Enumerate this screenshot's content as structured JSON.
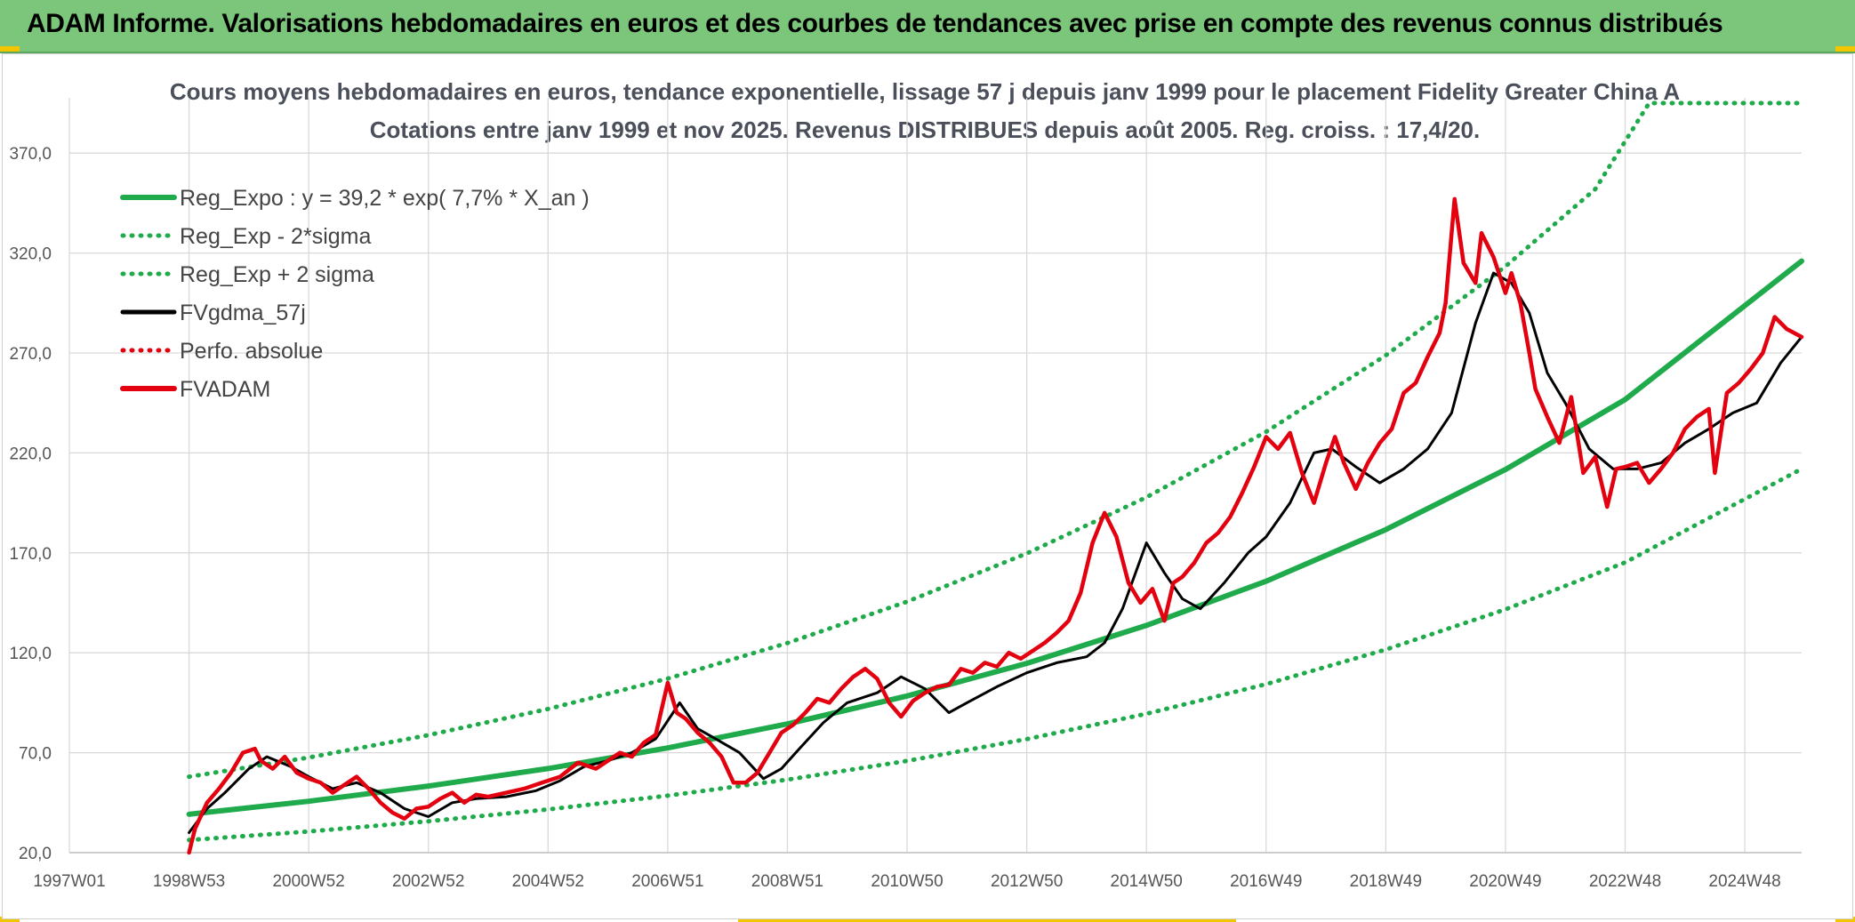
{
  "header": {
    "title": "ADAM Informe. Valorisations hebdomadaires en euros et des courbes de tendances avec prise en compte des revenus connus distribués"
  },
  "chart_data": {
    "type": "line",
    "title": "Cours moyens hebdomadaires en euros, tendance exponentielle, lissage 57 j depuis janv 1999 pour le placement Fidelity Greater China A",
    "subtitle": "Cotations entre janv 1999 et nov 2025. Revenus DISTRIBUES depuis août 2005. Reg. croiss. : 17,4/20.",
    "xlabel": "",
    "ylabel": "",
    "ylim": [
      20,
      395
    ],
    "yticks": [
      "20,0",
      "70,0",
      "120,0",
      "170,0",
      "220,0",
      "270,0",
      "320,0",
      "370,0"
    ],
    "xlim": [
      1997.0,
      2025.95
    ],
    "xticks": [
      "1997W01",
      "1998W53",
      "2000W52",
      "2002W52",
      "2004W52",
      "2006W51",
      "2008W51",
      "2010W50",
      "2012W50",
      "2014W50",
      "2016W49",
      "2018W49",
      "2020W49",
      "2022W48",
      "2024W48"
    ],
    "grid": true,
    "legend_position": "top-left",
    "series": [
      {
        "name": "Reg_Expo : y = 39,2 * exp( 7,7% *  X_an )",
        "color": "#1faa4b",
        "style": "solid",
        "x": [
          1999.0,
          2001.0,
          2003.0,
          2005.0,
          2007.0,
          2009.0,
          2011.0,
          2013.0,
          2015.0,
          2017.0,
          2019.0,
          2021.0,
          2023.0,
          2025.95
        ],
        "values": [
          39.2,
          45.7,
          53.3,
          62.1,
          72.4,
          84.4,
          98.4,
          114.7,
          133.7,
          155.8,
          181.6,
          211.7,
          246.7,
          316.0
        ]
      },
      {
        "name": "Reg_Exp - 2*sigma",
        "color": "#1faa4b",
        "style": "dotted",
        "x": [
          1999.0,
          2001.0,
          2003.0,
          2005.0,
          2007.0,
          2009.0,
          2011.0,
          2013.0,
          2015.0,
          2017.0,
          2019.0,
          2021.0,
          2023.0,
          2025.95
        ],
        "values": [
          26.3,
          30.6,
          35.7,
          41.6,
          48.5,
          56.5,
          65.9,
          76.8,
          89.5,
          104.3,
          121.6,
          141.7,
          165.2,
          212.0
        ]
      },
      {
        "name": "Reg_Exp + 2 sigma",
        "color": "#1faa4b",
        "style": "dotted",
        "x": [
          1999.0,
          2001.0,
          2003.0,
          2005.0,
          2007.0,
          2009.0,
          2011.0,
          2013.0,
          2015.0,
          2017.0,
          2019.0,
          2021.0,
          2022.5,
          2023.4,
          2025.95
        ],
        "values": [
          58.0,
          67.6,
          78.8,
          91.9,
          107.1,
          124.9,
          145.6,
          169.7,
          197.8,
          230.6,
          268.8,
          313.3,
          352.0,
          395.0,
          395.0
        ]
      },
      {
        "name": "FVgdma_57j",
        "color": "#000000",
        "style": "solid",
        "x": [
          1999.0,
          1999.3,
          1999.6,
          2000.0,
          2000.3,
          2000.7,
          2001.0,
          2001.4,
          2001.8,
          2002.2,
          2002.6,
          2003.0,
          2003.4,
          2003.8,
          2004.3,
          2004.8,
          2005.2,
          2005.6,
          2006.0,
          2006.4,
          2006.8,
          2007.2,
          2007.5,
          2007.8,
          2008.2,
          2008.6,
          2008.9,
          2009.2,
          2009.6,
          2010.0,
          2010.5,
          2010.9,
          2011.3,
          2011.7,
          2012.0,
          2012.5,
          2013.0,
          2013.5,
          2014.0,
          2014.3,
          2014.6,
          2015.0,
          2015.3,
          2015.6,
          2015.9,
          2016.3,
          2016.7,
          2017.0,
          2017.4,
          2017.8,
          2018.1,
          2018.5,
          2018.9,
          2019.3,
          2019.7,
          2020.1,
          2020.5,
          2020.8,
          2021.1,
          2021.4,
          2021.7,
          2022.0,
          2022.4,
          2022.8,
          2023.2,
          2023.6,
          2024.0,
          2024.4,
          2024.8,
          2025.2,
          2025.6,
          2025.95
        ],
        "values": [
          30,
          42,
          50,
          62,
          68,
          63,
          58,
          52,
          55,
          50,
          42,
          38,
          45,
          47,
          48,
          51,
          56,
          63,
          66,
          70,
          77,
          95,
          82,
          77,
          70,
          57,
          62,
          72,
          85,
          95,
          100,
          108,
          102,
          90,
          95,
          103,
          110,
          115,
          118,
          125,
          142,
          175,
          160,
          147,
          142,
          155,
          170,
          178,
          195,
          220,
          222,
          213,
          205,
          212,
          222,
          240,
          285,
          310,
          305,
          290,
          260,
          245,
          222,
          212,
          212,
          215,
          225,
          232,
          240,
          245,
          265,
          278
        ]
      },
      {
        "name": "Perfo. absolue",
        "color": "#e3000f",
        "style": "dotted",
        "x": [],
        "values": []
      },
      {
        "name": "FVADAM",
        "color": "#e3000f",
        "style": "solid",
        "x": [
          1999.0,
          1999.1,
          1999.3,
          1999.5,
          1999.7,
          1999.9,
          2000.1,
          2000.2,
          2000.4,
          2000.6,
          2000.8,
          2001.0,
          2001.2,
          2001.4,
          2001.6,
          2001.8,
          2002.0,
          2002.2,
          2002.4,
          2002.6,
          2002.8,
          2003.0,
          2003.2,
          2003.4,
          2003.6,
          2003.8,
          2004.0,
          2004.3,
          2004.6,
          2004.9,
          2005.2,
          2005.5,
          2005.8,
          2006.0,
          2006.2,
          2006.4,
          2006.6,
          2006.8,
          2007.0,
          2007.15,
          2007.3,
          2007.5,
          2007.7,
          2007.9,
          2008.1,
          2008.3,
          2008.5,
          2008.7,
          2008.9,
          2009.1,
          2009.3,
          2009.5,
          2009.7,
          2009.9,
          2010.1,
          2010.3,
          2010.5,
          2010.7,
          2010.9,
          2011.1,
          2011.3,
          2011.5,
          2011.7,
          2011.9,
          2012.1,
          2012.3,
          2012.5,
          2012.7,
          2012.9,
          2013.1,
          2013.3,
          2013.5,
          2013.7,
          2013.9,
          2014.1,
          2014.3,
          2014.5,
          2014.7,
          2014.9,
          2015.1,
          2015.3,
          2015.45,
          2015.6,
          2015.8,
          2016.0,
          2016.2,
          2016.4,
          2016.6,
          2016.8,
          2017.0,
          2017.2,
          2017.4,
          2017.6,
          2017.8,
          2018.0,
          2018.15,
          2018.3,
          2018.5,
          2018.7,
          2018.9,
          2019.1,
          2019.3,
          2019.5,
          2019.7,
          2019.9,
          2020.0,
          2020.15,
          2020.3,
          2020.5,
          2020.6,
          2020.8,
          2021.0,
          2021.1,
          2021.25,
          2021.4,
          2021.5,
          2021.7,
          2021.9,
          2022.1,
          2022.3,
          2022.5,
          2022.7,
          2022.85,
          2023.0,
          2023.2,
          2023.4,
          2023.6,
          2023.8,
          2024.0,
          2024.2,
          2024.4,
          2024.5,
          2024.7,
          2024.9,
          2025.1,
          2025.3,
          2025.5,
          2025.7,
          2025.95
        ],
        "values": [
          20,
          32,
          45,
          52,
          60,
          70,
          72,
          66,
          62,
          68,
          60,
          57,
          55,
          50,
          54,
          58,
          52,
          45,
          40,
          37,
          42,
          43,
          47,
          50,
          45,
          49,
          48,
          50,
          52,
          55,
          58,
          65,
          62,
          66,
          70,
          68,
          75,
          79,
          105,
          90,
          87,
          80,
          75,
          68,
          55,
          55,
          60,
          70,
          80,
          84,
          90,
          97,
          95,
          102,
          108,
          112,
          107,
          95,
          88,
          96,
          100,
          103,
          104,
          112,
          110,
          115,
          113,
          120,
          117,
          121,
          125,
          130,
          136,
          150,
          175,
          190,
          178,
          155,
          145,
          152,
          136,
          155,
          158,
          165,
          175,
          180,
          188,
          200,
          213,
          228,
          222,
          230,
          210,
          195,
          215,
          228,
          215,
          202,
          215,
          225,
          232,
          250,
          255,
          268,
          280,
          295,
          347,
          315,
          305,
          330,
          318,
          300,
          310,
          295,
          270,
          252,
          238,
          225,
          248,
          210,
          218,
          193,
          212,
          213,
          215,
          205,
          212,
          220,
          232,
          238,
          242,
          210,
          250,
          255,
          262,
          270,
          288,
          282,
          278
        ]
      }
    ]
  }
}
